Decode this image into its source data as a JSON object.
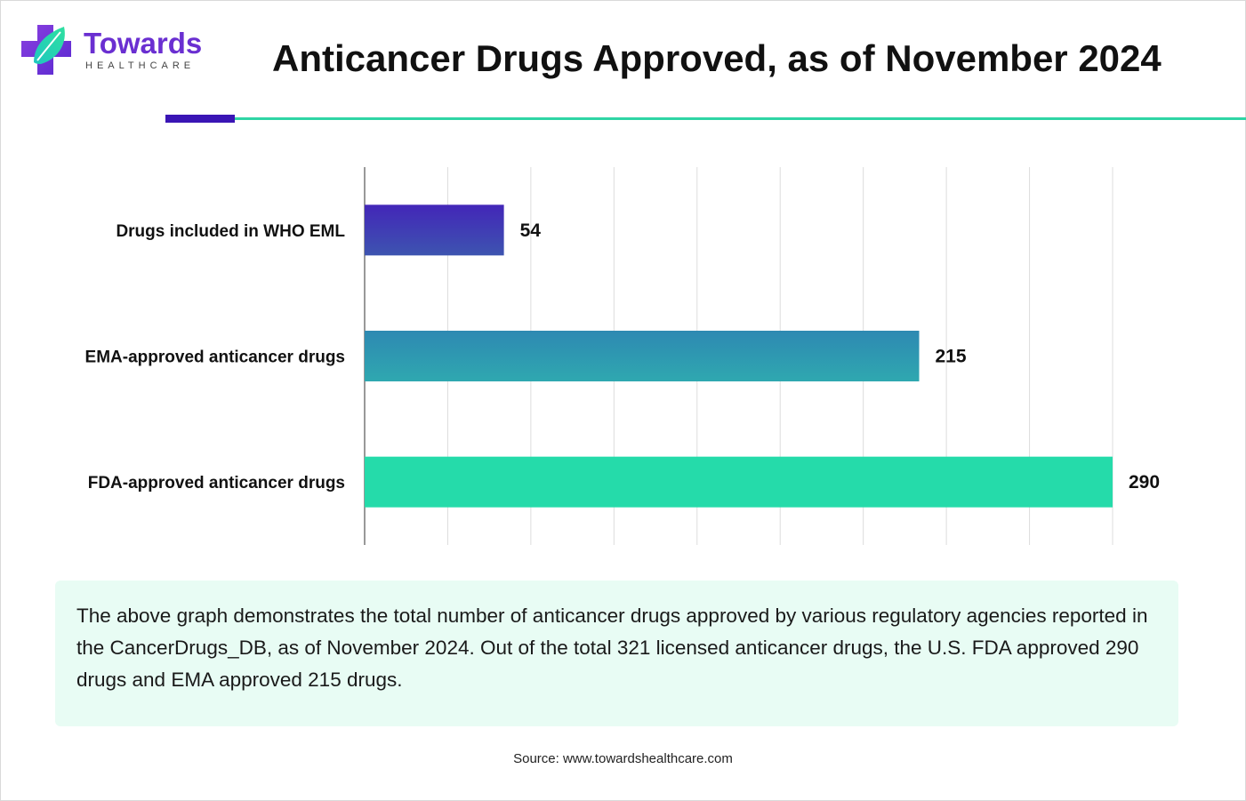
{
  "brand": {
    "name": "Towards",
    "sub": "HEALTHCARE",
    "colors": {
      "purple": "#6a2fd1",
      "teal": "#2fd5a5",
      "navy": "#3a15b5"
    },
    "icon": "cross-leaf-logo-icon"
  },
  "title": "Anticancer Drugs Approved, as of November 2024",
  "chart_data": {
    "type": "bar",
    "orientation": "horizontal",
    "categories": [
      "Drugs included in WHO EML",
      "EMA-approved anticancer drugs",
      "FDA-approved anticancer drugs"
    ],
    "values": [
      54,
      215,
      290
    ],
    "value_labels": [
      "54",
      "215",
      "290"
    ],
    "bar_colors": [
      [
        "#4326b8",
        "#3d54b0"
      ],
      [
        "#2e89b2",
        "#2fa8b0"
      ],
      [
        "#25dbaa",
        "#25dbaa"
      ]
    ],
    "xlim": [
      0,
      290
    ],
    "grid": "vertical",
    "gridline_count": 9,
    "title": "",
    "xlabel": "",
    "ylabel": ""
  },
  "note": "The above graph demonstrates the total number of anticancer drugs approved by various regulatory agencies reported in the CancerDrugs_DB, as of November 2024. Out of the total 321 licensed anticancer drugs, the U.S. FDA approved 290 drugs and EMA approved 215 drugs.",
  "source": "Source: www.towardshealthcare.com"
}
